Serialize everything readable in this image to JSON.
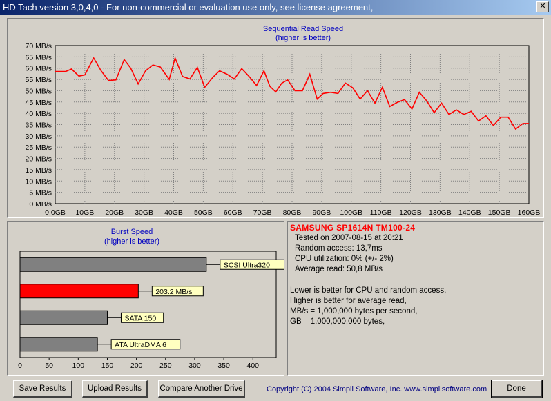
{
  "window": {
    "title": "HD Tach version 3,0,4,0  - For non-commercial or evaluation use only, see license agreement,",
    "close_glyph": "✕"
  },
  "read_chart": {
    "title": "Sequential Read Speed",
    "subtitle": "(higher is better)"
  },
  "burst_chart": {
    "title": "Burst Speed",
    "subtitle": "(higher is better)"
  },
  "info": {
    "drive": "SAMSUNG SP1614N TM100-24",
    "tested": "Tested on 2007-08-15 at 20:21",
    "random_access": "Random access: 13,7ms",
    "cpu": "CPU utilization: 0% (+/- 2%)",
    "average": "Average read: 50,8 MB/s",
    "notes": [
      "Lower is better for CPU and random access,",
      "Higher is better for average read,",
      "MB/s = 1,000,000 bytes per second,",
      "GB = 1,000,000,000 bytes,"
    ]
  },
  "buttons": {
    "save": "Save Results",
    "upload": "Upload Results",
    "compare": "Compare Another Drive",
    "done": "Done"
  },
  "copyright": "Copyright (C) 2004 Simpli Software, Inc. www.simplisoftware.com",
  "colors": {
    "read_line": "#ff0000",
    "current_bar": "#ff0000",
    "reference_bar": "#808080",
    "label_bg": "#ffffc0",
    "chart_title": "#0000c0"
  },
  "chart_data": [
    {
      "type": "line",
      "title": "Sequential Read Speed",
      "subtitle": "(higher is better)",
      "xlim": [
        0,
        160
      ],
      "ylim": [
        0,
        70
      ],
      "x_ticks": [
        0,
        10,
        20,
        30,
        40,
        50,
        60,
        70,
        80,
        90,
        100,
        110,
        120,
        130,
        140,
        150,
        160
      ],
      "x_tick_labels": [
        "0.0GB",
        "10GB",
        "20GB",
        "30GB",
        "40GB",
        "50GB",
        "60GB",
        "70GB",
        "80GB",
        "90GB",
        "100GB",
        "110GB",
        "120GB",
        "130GB",
        "140GB",
        "150GB",
        "160GB"
      ],
      "y_ticks": [
        0,
        5,
        10,
        15,
        20,
        25,
        30,
        35,
        40,
        45,
        50,
        55,
        60,
        65,
        70
      ],
      "y_tick_labels": [
        "0 MB/s",
        "5 MB/s",
        "10 MB/s",
        "15 MB/s",
        "20 MB/s",
        "25 MB/s",
        "30 MB/s",
        "35 MB/s",
        "40 MB/s",
        "45 MB/s",
        "50 MB/s",
        "55 MB/s",
        "60 MB/s",
        "65 MB/s",
        "70 MB/s"
      ],
      "grid": true,
      "x": [
        0,
        3.5,
        5.5,
        8,
        10,
        13,
        15.5,
        18,
        20.5,
        23.3,
        25.5,
        28,
        30.5,
        33,
        35.5,
        38.5,
        40.5,
        43,
        45.5,
        48,
        50.5,
        53.3,
        55.5,
        58,
        60.5,
        63,
        65.5,
        68,
        70.5,
        72.5,
        74.5,
        76.5,
        78.5,
        81,
        83.5,
        86,
        88.5,
        90.5,
        93,
        95.5,
        98,
        100.5,
        103,
        105.5,
        108,
        110.5,
        113,
        115.5,
        118,
        120.5,
        123,
        125.5,
        128,
        130.5,
        133,
        135.5,
        138,
        140.5,
        143,
        145.5,
        148,
        150.5,
        153,
        155.5,
        158,
        160
      ],
      "series": [
        {
          "values": [
            58.5,
            58.5,
            59.6,
            56.5,
            57,
            64.5,
            58.8,
            54.5,
            54.8,
            63.8,
            60,
            53,
            58.8,
            61.4,
            60.5,
            55,
            64.5,
            56.3,
            55.2,
            60.3,
            51.5,
            56,
            58.8,
            57.3,
            55.2,
            59.8,
            56.3,
            52.3,
            58.8,
            52,
            49.5,
            53.3,
            54.8,
            50,
            50,
            57.3,
            46.3,
            48.8,
            49.3,
            48.8,
            53.4,
            51.3,
            46.3,
            50,
            44.5,
            51.5,
            43,
            44.8,
            46.1,
            41.9,
            49.3,
            45.5,
            40.3,
            44.5,
            39.5,
            41.5,
            39.5,
            40.9,
            36.6,
            38.9,
            34.6,
            38.3,
            38.3,
            33,
            35.5,
            35.5
          ]
        }
      ]
    },
    {
      "type": "bar",
      "orientation": "horizontal",
      "title": "Burst Speed",
      "subtitle": "(higher is better)",
      "xlim": [
        0,
        440
      ],
      "x_ticks": [
        0,
        50,
        100,
        150,
        200,
        250,
        300,
        350,
        400
      ],
      "x_tick_labels": [
        "0",
        "50",
        "100",
        "150",
        "200",
        "250",
        "300",
        "350",
        "400"
      ],
      "categories": [
        "SCSI Ultra320",
        "203.2 MB/s",
        "SATA 150",
        "ATA UltraDMA 6"
      ],
      "values": [
        320,
        203.2,
        150,
        133
      ],
      "current": [
        false,
        true,
        false,
        false
      ]
    }
  ]
}
